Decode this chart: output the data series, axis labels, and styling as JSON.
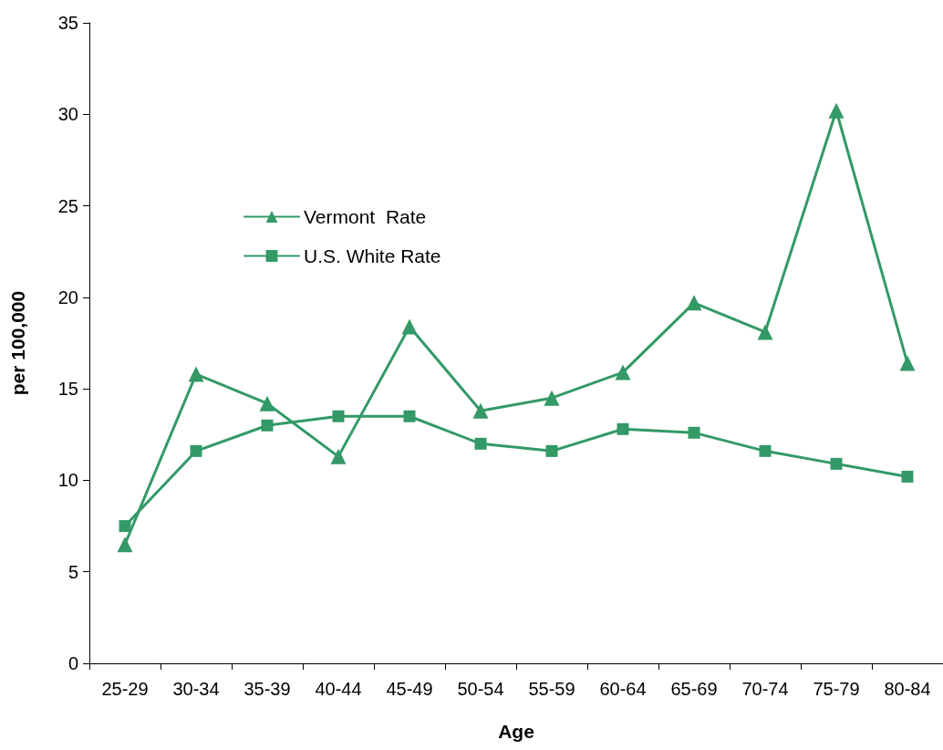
{
  "chart_data": {
    "type": "line",
    "xlabel": "Age",
    "ylabel": "per 100,000",
    "categories": [
      "25-29",
      "30-34",
      "35-39",
      "40-44",
      "45-49",
      "50-54",
      "55-59",
      "60-64",
      "65-69",
      "70-74",
      "75-79",
      "80-84"
    ],
    "series": [
      {
        "name": "Vermont  Rate",
        "color": "#339966",
        "marker": "triangle",
        "values": [
          6.5,
          15.8,
          14.2,
          11.3,
          18.4,
          13.8,
          14.5,
          15.9,
          19.7,
          18.1,
          30.2,
          16.4
        ]
      },
      {
        "name": "U.S. White Rate",
        "color": "#339966",
        "marker": "square",
        "values": [
          7.5,
          11.6,
          13.0,
          13.5,
          13.5,
          12.0,
          11.6,
          12.8,
          12.6,
          11.6,
          10.9,
          10.2
        ]
      }
    ],
    "ylim": [
      0,
      35
    ],
    "yticks": [
      0,
      5,
      10,
      15,
      20,
      25,
      30,
      35
    ],
    "grid": false,
    "legend": "top left",
    "line_style": "solid"
  }
}
